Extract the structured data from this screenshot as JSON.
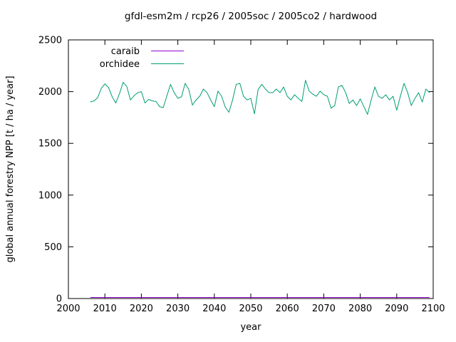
{
  "chart_data": {
    "type": "line",
    "title": "gfdl-esm2m / rcp26 / 2005soc / 2005co2 / hardwood",
    "xlabel": "year",
    "ylabel": "global annual forestry NPP [t / ha / year]",
    "xlim": [
      2000,
      2100
    ],
    "ylim": [
      0,
      2500
    ],
    "x_ticks": [
      2000,
      2010,
      2020,
      2030,
      2040,
      2050,
      2060,
      2070,
      2080,
      2090,
      2100
    ],
    "y_ticks": [
      0,
      500,
      1000,
      1500,
      2000,
      2500
    ],
    "grid": false,
    "legend_position": "top-left-inside",
    "background_color": "#ffffff",
    "axis_color": "#000000",
    "x": [
      2006,
      2007,
      2008,
      2009,
      2010,
      2011,
      2012,
      2013,
      2014,
      2015,
      2016,
      2017,
      2018,
      2019,
      2020,
      2021,
      2022,
      2023,
      2024,
      2025,
      2026,
      2027,
      2028,
      2029,
      2030,
      2031,
      2032,
      2033,
      2034,
      2035,
      2036,
      2037,
      2038,
      2039,
      2040,
      2041,
      2042,
      2043,
      2044,
      2045,
      2046,
      2047,
      2048,
      2049,
      2050,
      2051,
      2052,
      2053,
      2054,
      2055,
      2056,
      2057,
      2058,
      2059,
      2060,
      2061,
      2062,
      2063,
      2064,
      2065,
      2066,
      2067,
      2068,
      2069,
      2070,
      2071,
      2072,
      2073,
      2074,
      2075,
      2076,
      2077,
      2078,
      2079,
      2080,
      2081,
      2082,
      2083,
      2084,
      2085,
      2086,
      2087,
      2088,
      2089,
      2090,
      2091,
      2092,
      2093,
      2094,
      2095,
      2096,
      2097,
      2098,
      2099
    ],
    "series": [
      {
        "name": "caraib",
        "color": "#9400d3",
        "values": [
          10,
          10,
          10,
          10,
          10,
          10,
          10,
          10,
          10,
          10,
          10,
          10,
          10,
          10,
          10,
          10,
          10,
          10,
          10,
          10,
          10,
          10,
          10,
          10,
          10,
          10,
          10,
          10,
          10,
          10,
          10,
          10,
          10,
          10,
          10,
          10,
          10,
          10,
          10,
          10,
          10,
          10,
          10,
          10,
          10,
          10,
          10,
          10,
          10,
          10,
          10,
          10,
          10,
          10,
          10,
          10,
          10,
          10,
          10,
          10,
          10,
          10,
          10,
          10,
          10,
          10,
          10,
          10,
          10,
          10,
          10,
          10,
          10,
          10,
          10,
          10,
          10,
          10,
          10,
          10,
          10,
          10,
          10,
          10,
          10,
          10,
          10,
          10,
          10,
          10,
          10,
          10,
          10,
          10
        ]
      },
      {
        "name": "orchidee",
        "color": "#009e73",
        "values": [
          1900,
          1910,
          1940,
          2030,
          2075,
          2040,
          1950,
          1890,
          1980,
          2090,
          2050,
          1920,
          1960,
          1990,
          2000,
          1890,
          1925,
          1910,
          1905,
          1855,
          1845,
          1960,
          2070,
          1990,
          1935,
          1950,
          2080,
          2020,
          1870,
          1920,
          1955,
          2025,
          1990,
          1920,
          1855,
          2005,
          1955,
          1850,
          1800,
          1920,
          2070,
          2080,
          1955,
          1920,
          1935,
          1785,
          2020,
          2070,
          2025,
          1990,
          1990,
          2025,
          1990,
          2045,
          1955,
          1920,
          1970,
          1935,
          1905,
          2110,
          2005,
          1975,
          1955,
          2005,
          1970,
          1955,
          1840,
          1865,
          2045,
          2060,
          1990,
          1885,
          1920,
          1865,
          1930,
          1855,
          1780,
          1920,
          2045,
          1955,
          1935,
          1970,
          1920,
          1955,
          1820,
          1955,
          2080,
          1990,
          1865,
          1935,
          1990,
          1900,
          2025,
          1990
        ]
      }
    ]
  }
}
